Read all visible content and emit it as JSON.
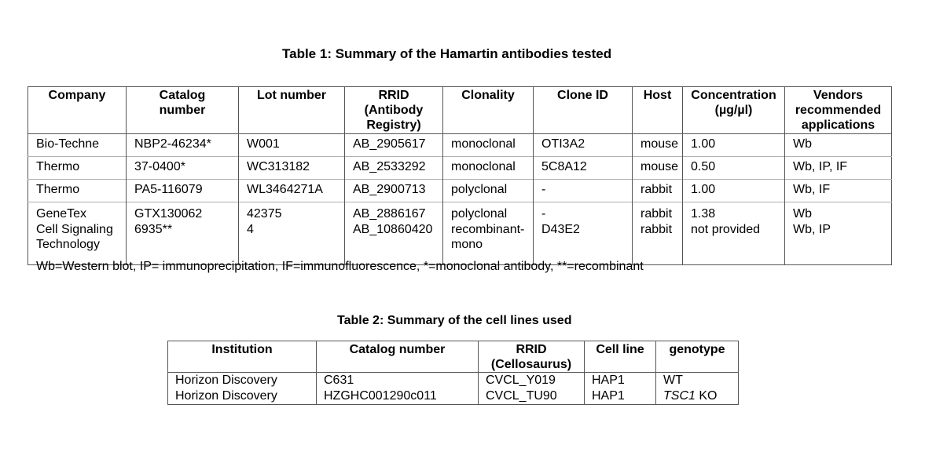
{
  "table1": {
    "title": "Table 1: Summary of the Hamartin antibodies tested",
    "headers": [
      "Company",
      "Catalog number",
      "Lot number",
      "RRID (Antibody Registry)",
      "Clonality",
      "Clone ID",
      "Host",
      "Concentration (µg/µl)",
      "Vendors recommended applications"
    ],
    "rows": [
      [
        "Bio-Techne",
        "NBP2-46234*",
        "W001",
        "AB_2905617",
        "monoclonal",
        "OTI3A2",
        "mouse",
        "1.00",
        "Wb"
      ],
      [
        "Thermo",
        "37-0400*",
        "WC313182",
        "AB_2533292",
        "monoclonal",
        "5C8A12",
        "mouse",
        "0.50",
        "Wb, IP, IF"
      ],
      [
        "Thermo",
        "PA5-116079",
        "WL3464271A",
        "AB_2900713",
        "polyclonal",
        "-",
        "rabbit",
        "1.00",
        "Wb, IF"
      ],
      [
        "GeneTex",
        "GTX130062",
        "42375",
        "AB_2886167",
        "polyclonal",
        "-",
        "rabbit",
        "1.38",
        "Wb"
      ],
      [
        "Cell Signaling Technology",
        "6935**",
        "4",
        "AB_10860420",
        "recombinant-mono",
        "D43E2",
        "rabbit",
        "not provided",
        "Wb, IP"
      ]
    ],
    "footnote": "Wb=Western blot, IP= immunoprecipitation, IF=immunofluorescence, *=monoclonal antibody, **=recombinant"
  },
  "table2": {
    "title": "Table 2: Summary of the cell lines used",
    "headers": [
      "Institution",
      "Catalog number",
      "RRID (Cellosaurus)",
      "Cell line",
      "genotype"
    ],
    "rows": [
      [
        "Horizon Discovery",
        "C631",
        "CVCL_Y019",
        "HAP1",
        "WT"
      ],
      [
        "Horizon Discovery",
        "HZGHC001290c011",
        "CVCL_TU90",
        "HAP1",
        "TSC1 KO"
      ]
    ],
    "genotype_gene": "TSC1",
    "genotype_suffix": " KO"
  }
}
